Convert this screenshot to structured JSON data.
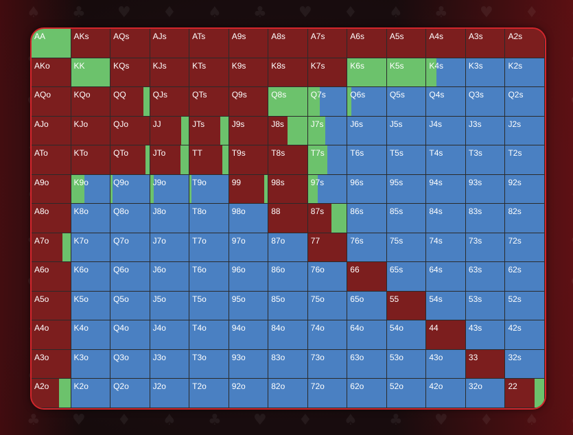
{
  "colors": {
    "fold": "#7c1e1e",
    "raise": "#6cc26c",
    "call": "#4a80c2",
    "grid_line": "#2a2a2a",
    "border": "#d3262c"
  },
  "rows": [
    {
      "hands": [
        "AA",
        "AKs",
        "AQs",
        "AJs",
        "ATs",
        "A9s",
        "A8s",
        "A7s",
        "A6s",
        "A5s",
        "A4s",
        "A3s",
        "A2s"
      ],
      "raise": [
        1,
        0,
        0,
        0,
        0,
        0,
        0,
        0,
        0,
        0,
        0,
        0,
        0
      ],
      "call": [
        0,
        0,
        0,
        0,
        0,
        0,
        0,
        0,
        0,
        0,
        0,
        0,
        0
      ]
    },
    {
      "hands": [
        "AKo",
        "KK",
        "KQs",
        "KJs",
        "KTs",
        "K9s",
        "K8s",
        "K7s",
        "K6s",
        "K5s",
        "K4s",
        "K3s",
        "K2s"
      ],
      "raise": [
        0,
        1,
        0,
        0,
        0,
        0,
        0,
        0,
        1,
        1,
        0.25,
        0,
        0
      ],
      "call": [
        0,
        0,
        0,
        0,
        0,
        0,
        0,
        0,
        0,
        0,
        0.75,
        1,
        1
      ]
    },
    {
      "hands": [
        "AQo",
        "KQo",
        "QQ",
        "QJs",
        "QTs",
        "Q9s",
        "Q8s",
        "Q7s",
        "Q6s",
        "Q5s",
        "Q4s",
        "Q3s",
        "Q2s"
      ],
      "raise": [
        0,
        0,
        0.15,
        0,
        0,
        0,
        1,
        0.3,
        0.1,
        0,
        0,
        0,
        0
      ],
      "call": [
        0,
        0,
        0,
        0,
        0,
        0,
        0,
        0.7,
        0.9,
        1,
        1,
        1,
        1
      ]
    },
    {
      "hands": [
        "AJo",
        "KJo",
        "QJo",
        "JJ",
        "JTs",
        "J9s",
        "J8s",
        "J7s",
        "J6s",
        "J5s",
        "J4s",
        "J3s",
        "J2s"
      ],
      "raise": [
        0,
        0,
        0,
        0.2,
        0.2,
        0,
        0.5,
        0.45,
        0,
        0,
        0,
        0,
        0
      ],
      "call": [
        0,
        0,
        0,
        0,
        0,
        0,
        0,
        0.55,
        1,
        1,
        1,
        1,
        1
      ]
    },
    {
      "hands": [
        "ATo",
        "KTo",
        "QTo",
        "JTo",
        "TT",
        "T9s",
        "T8s",
        "T7s",
        "T6s",
        "T5s",
        "T4s",
        "T3s",
        "T2s"
      ],
      "raise": [
        0,
        0,
        0.1,
        0.22,
        0.15,
        0,
        0,
        0.5,
        0,
        0,
        0,
        0,
        0
      ],
      "call": [
        0,
        0,
        0,
        0,
        0,
        0,
        0,
        0.5,
        1,
        1,
        1,
        1,
        1
      ]
    },
    {
      "hands": [
        "A9o",
        "K9o",
        "Q9o",
        "J9o",
        "T9o",
        "99",
        "98s",
        "97s",
        "96s",
        "95s",
        "94s",
        "93s",
        "92s"
      ],
      "raise": [
        0,
        0.35,
        0.05,
        0.1,
        0.05,
        0.1,
        0,
        0.25,
        0,
        0,
        0,
        0,
        0
      ],
      "call": [
        0,
        0.65,
        0.95,
        0.9,
        0.95,
        0,
        0,
        0.75,
        1,
        1,
        1,
        1,
        1
      ]
    },
    {
      "hands": [
        "A8o",
        "K8o",
        "Q8o",
        "J8o",
        "T8o",
        "98o",
        "88",
        "87s",
        "86s",
        "85s",
        "84s",
        "83s",
        "82s"
      ],
      "raise": [
        0,
        0,
        0,
        0,
        0,
        0,
        0,
        0.4,
        0,
        0,
        0,
        0,
        0
      ],
      "call": [
        0,
        1,
        1,
        1,
        1,
        1,
        0,
        0,
        1,
        1,
        1,
        1,
        1
      ]
    },
    {
      "hands": [
        "A7o",
        "K7o",
        "Q7o",
        "J7o",
        "T7o",
        "97o",
        "87o",
        "77",
        "76s",
        "75s",
        "74s",
        "73s",
        "72s"
      ],
      "raise": [
        0.2,
        0,
        0,
        0,
        0,
        0,
        0,
        0,
        0,
        0,
        0,
        0,
        0
      ],
      "call": [
        0,
        1,
        1,
        1,
        1,
        1,
        1,
        0,
        1,
        1,
        1,
        1,
        1
      ]
    },
    {
      "hands": [
        "A6o",
        "K6o",
        "Q6o",
        "J6o",
        "T6o",
        "96o",
        "86o",
        "76o",
        "66",
        "65s",
        "64s",
        "63s",
        "62s"
      ],
      "raise": [
        0,
        0,
        0,
        0,
        0,
        0,
        0,
        0,
        0,
        0,
        0,
        0,
        0
      ],
      "call": [
        0,
        1,
        1,
        1,
        1,
        1,
        1,
        1,
        0,
        1,
        1,
        1,
        1
      ]
    },
    {
      "hands": [
        "A5o",
        "K5o",
        "Q5o",
        "J5o",
        "T5o",
        "95o",
        "85o",
        "75o",
        "65o",
        "55",
        "54s",
        "53s",
        "52s"
      ],
      "raise": [
        0,
        0,
        0,
        0,
        0,
        0,
        0,
        0,
        0,
        0,
        0,
        0,
        0
      ],
      "call": [
        0,
        1,
        1,
        1,
        1,
        1,
        1,
        1,
        1,
        0,
        1,
        1,
        1
      ]
    },
    {
      "hands": [
        "A4o",
        "K4o",
        "Q4o",
        "J4o",
        "T4o",
        "94o",
        "84o",
        "74o",
        "64o",
        "54o",
        "44",
        "43s",
        "42s"
      ],
      "raise": [
        0,
        0,
        0,
        0,
        0,
        0,
        0,
        0,
        0,
        0,
        0,
        0,
        0
      ],
      "call": [
        0,
        1,
        1,
        1,
        1,
        1,
        1,
        1,
        1,
        1,
        0,
        1,
        1
      ]
    },
    {
      "hands": [
        "A3o",
        "K3o",
        "Q3o",
        "J3o",
        "T3o",
        "93o",
        "83o",
        "73o",
        "63o",
        "53o",
        "43o",
        "33",
        "32s"
      ],
      "raise": [
        0,
        0,
        0,
        0,
        0,
        0,
        0,
        0,
        0,
        0,
        0,
        0,
        0
      ],
      "call": [
        0,
        1,
        1,
        1,
        1,
        1,
        1,
        1,
        1,
        1,
        1,
        0,
        1
      ]
    },
    {
      "hands": [
        "A2o",
        "K2o",
        "Q2o",
        "J2o",
        "T2o",
        "92o",
        "82o",
        "72o",
        "62o",
        "52o",
        "42o",
        "32o",
        "22"
      ],
      "raise": [
        0.3,
        0,
        0,
        0,
        0,
        0,
        0,
        0,
        0,
        0,
        0,
        0,
        0.25
      ],
      "call": [
        0,
        1,
        1,
        1,
        1,
        1,
        1,
        1,
        1,
        1,
        1,
        1,
        0
      ]
    }
  ]
}
